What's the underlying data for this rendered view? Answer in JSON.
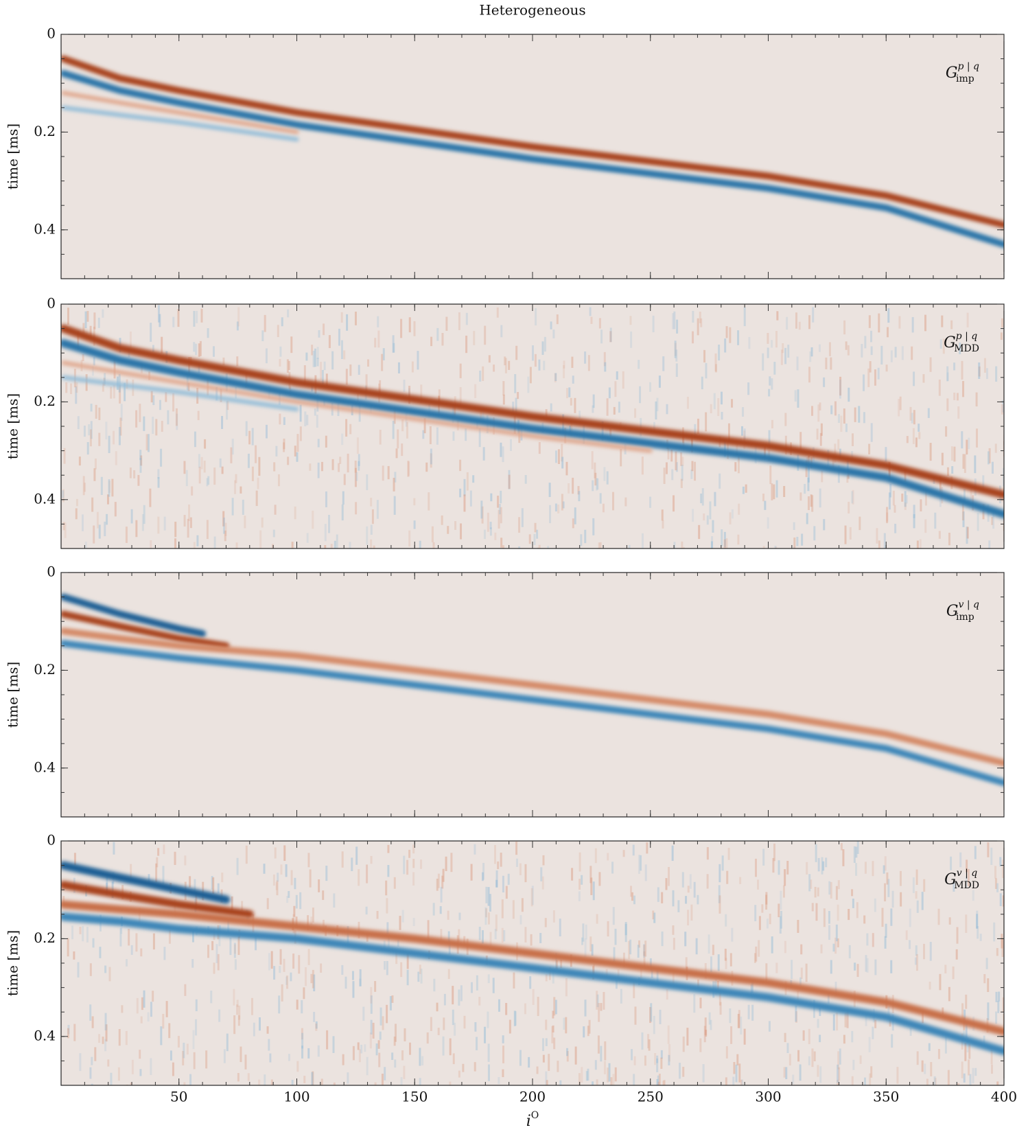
{
  "chart_data": {
    "type": "wavefield",
    "title": "Heterogeneous",
    "xlabel": {
      "base": "i",
      "sup": "O"
    },
    "xlim": [
      0,
      400
    ],
    "xticks": [
      50,
      100,
      150,
      200,
      250,
      300,
      350,
      400
    ],
    "xminorstep": 10,
    "ylim": [
      0.5,
      0
    ],
    "yticks": [
      0,
      0.2,
      0.4
    ],
    "yminorstep": 0.05,
    "background": "#ebe3df",
    "panels": [
      {
        "ylabel": "time [ms]",
        "label": {
          "base": "G",
          "sup": "p | q",
          "sub": "imp"
        },
        "noise": false,
        "series": [
          {
            "color": "#a8431f",
            "width": 10,
            "x": [
              1,
              25,
              50,
              100,
              150,
              200,
              250,
              300,
              350,
              400
            ],
            "y": [
              0.05,
              0.09,
              0.115,
              0.16,
              0.195,
              0.23,
              0.26,
              0.29,
              0.33,
              0.39
            ]
          },
          {
            "color": "#2b74a8",
            "width": 10,
            "x": [
              1,
              25,
              50,
              100,
              150,
              200,
              250,
              300,
              350,
              400
            ],
            "y": [
              0.08,
              0.115,
              0.14,
              0.185,
              0.22,
              0.255,
              0.285,
              0.315,
              0.355,
              0.43
            ]
          },
          {
            "color": "#e0a58a",
            "width": 6,
            "x": [
              1,
              25,
              50,
              100
            ],
            "y": [
              0.12,
              0.14,
              0.16,
              0.2
            ]
          },
          {
            "color": "#8fbbd8",
            "width": 6,
            "x": [
              1,
              25,
              50,
              100
            ],
            "y": [
              0.15,
              0.165,
              0.18,
              0.215
            ]
          }
        ]
      },
      {
        "ylabel": "time [ms]",
        "label": {
          "base": "G",
          "sup": "p | q",
          "sub": "MDD"
        },
        "noise": true,
        "series": [
          {
            "color": "#a8431f",
            "width": 12,
            "x": [
              1,
              25,
              50,
              100,
              150,
              200,
              250,
              300,
              350,
              400
            ],
            "y": [
              0.05,
              0.09,
              0.115,
              0.16,
              0.195,
              0.23,
              0.26,
              0.29,
              0.33,
              0.39
            ]
          },
          {
            "color": "#2b74a8",
            "width": 12,
            "x": [
              1,
              25,
              50,
              100,
              150,
              200,
              250,
              300,
              350,
              400
            ],
            "y": [
              0.08,
              0.115,
              0.14,
              0.185,
              0.22,
              0.255,
              0.285,
              0.315,
              0.355,
              0.43
            ]
          },
          {
            "color": "#e0a58a",
            "width": 6,
            "x": [
              1,
              50,
              100,
              150,
              200,
              250
            ],
            "y": [
              0.12,
              0.16,
              0.2,
              0.235,
              0.27,
              0.3
            ]
          },
          {
            "color": "#8fbbd8",
            "width": 6,
            "x": [
              1,
              25,
              50,
              100
            ],
            "y": [
              0.15,
              0.165,
              0.18,
              0.215
            ]
          }
        ]
      },
      {
        "ylabel": "time [ms]",
        "label": {
          "base": "G",
          "sup": "v | q",
          "sub": "imp"
        },
        "noise": false,
        "series": [
          {
            "color": "#1f5f94",
            "width": 10,
            "x": [
              1,
              25,
              50,
              60
            ],
            "y": [
              0.05,
              0.085,
              0.115,
              0.125
            ]
          },
          {
            "color": "#a8431f",
            "width": 10,
            "x": [
              1,
              25,
              50,
              70
            ],
            "y": [
              0.085,
              0.11,
              0.135,
              0.15
            ]
          },
          {
            "color": "#d48a68",
            "width": 10,
            "x": [
              1,
              25,
              50,
              100,
              150,
              200,
              250,
              300,
              350,
              400
            ],
            "y": [
              0.12,
              0.135,
              0.15,
              0.17,
              0.2,
              0.23,
              0.26,
              0.29,
              0.33,
              0.39
            ]
          },
          {
            "color": "#3e86b8",
            "width": 10,
            "x": [
              1,
              25,
              50,
              100,
              150,
              200,
              250,
              300,
              350,
              400
            ],
            "y": [
              0.145,
              0.16,
              0.175,
              0.2,
              0.23,
              0.26,
              0.29,
              0.32,
              0.36,
              0.43
            ]
          }
        ]
      },
      {
        "ylabel": "time [ms]",
        "label": {
          "base": "G",
          "sup": "v | q",
          "sub": "MDD"
        },
        "noise": true,
        "series": [
          {
            "color": "#1f5f94",
            "width": 12,
            "x": [
              1,
              25,
              50,
              70
            ],
            "y": [
              0.05,
              0.075,
              0.1,
              0.12
            ]
          },
          {
            "color": "#a8431f",
            "width": 12,
            "x": [
              1,
              25,
              50,
              80
            ],
            "y": [
              0.09,
              0.11,
              0.13,
              0.15
            ]
          },
          {
            "color": "#c86f4a",
            "width": 12,
            "x": [
              1,
              25,
              50,
              100,
              150,
              200,
              250,
              300,
              350,
              400
            ],
            "y": [
              0.13,
              0.14,
              0.15,
              0.175,
              0.2,
              0.23,
              0.26,
              0.29,
              0.33,
              0.39
            ]
          },
          {
            "color": "#3e86b8",
            "width": 12,
            "x": [
              1,
              25,
              50,
              100,
              150,
              200,
              250,
              300,
              350,
              400
            ],
            "y": [
              0.155,
              0.165,
              0.18,
              0.2,
              0.23,
              0.26,
              0.29,
              0.32,
              0.36,
              0.43
            ]
          }
        ]
      }
    ]
  }
}
